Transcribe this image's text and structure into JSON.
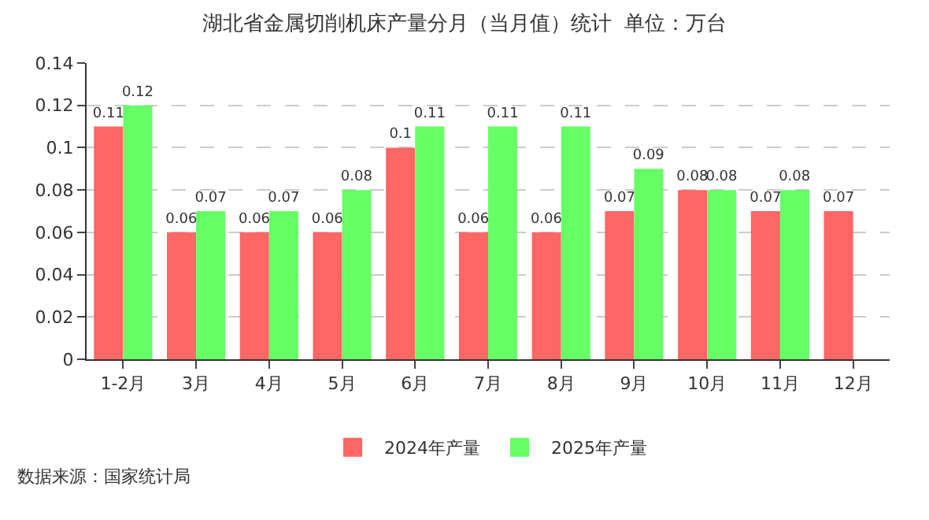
{
  "chart_data": {
    "type": "bar",
    "title": "湖北省金属切削机床产量分月（当月值）统计  单位：万台",
    "categories": [
      "1-2月",
      "3月",
      "4月",
      "5月",
      "6月",
      "7月",
      "8月",
      "9月",
      "10月",
      "11月",
      "12月"
    ],
    "series": [
      {
        "name": "2024年产量",
        "color": "#ff6666",
        "values": [
          0.11,
          0.06,
          0.06,
          0.06,
          0.1,
          0.06,
          0.06,
          0.07,
          0.08,
          0.07,
          0.07
        ]
      },
      {
        "name": "2025年产量",
        "color": "#66ff66",
        "values": [
          0.12,
          0.07,
          0.07,
          0.08,
          0.11,
          0.11,
          0.11,
          0.09,
          0.08,
          0.08,
          null
        ]
      }
    ],
    "ylim": [
      0,
      0.14
    ],
    "yticks": [
      0,
      0.02,
      0.04,
      0.06,
      0.08,
      0.1,
      0.12,
      0.14
    ],
    "grid": "y",
    "legend": "bottom",
    "data_labels": true,
    "annotations": [
      "数据来源：国家统计局"
    ]
  }
}
